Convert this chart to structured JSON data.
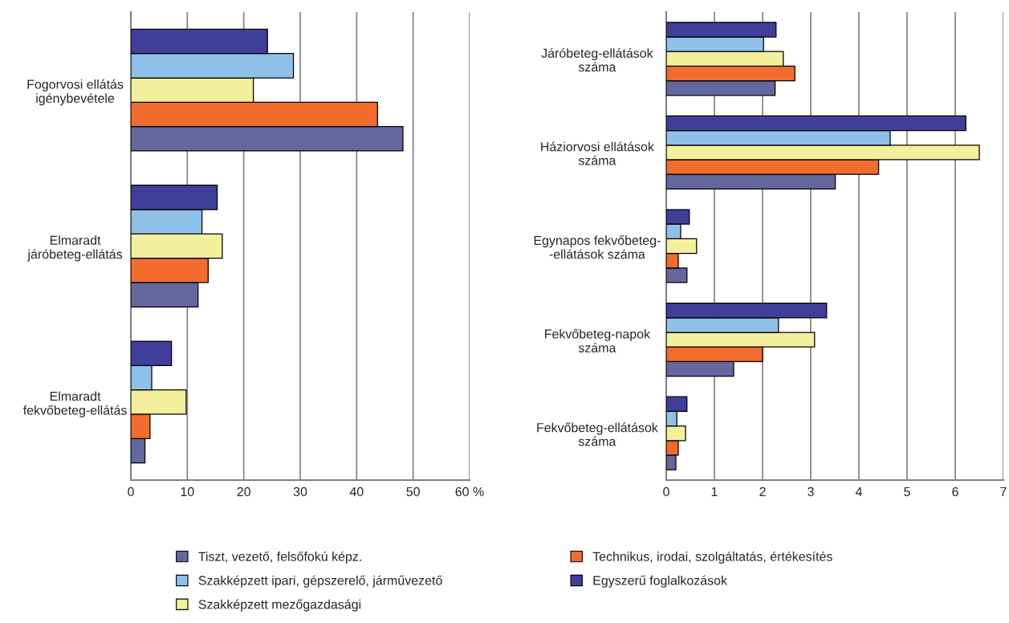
{
  "chart_data": [
    {
      "type": "bar",
      "orientation": "horizontal",
      "categories": [
        "Fogorvosi ellátás\nigénybevétele",
        "Elmaradt\njáróbeteg-ellátás",
        "Elmaradt\nfekvőbeteg-ellátás"
      ],
      "xlim": [
        0,
        60
      ],
      "xticks": [
        0,
        10,
        20,
        30,
        40,
        50,
        {
          "value": 60,
          "label": "60 %"
        }
      ],
      "grid": "x",
      "legend": "bottom",
      "series": [
        {
          "name": "Tiszt, vezető, felsőfokú képz.",
          "color": "#65679f",
          "values": [
            48.2,
            11.9,
            2.5
          ]
        },
        {
          "name": "Technikus, irodai, szolgáltatás, értékesítés",
          "color": "#f26c2d",
          "values": [
            43.7,
            13.7,
            3.4
          ]
        },
        {
          "name": "Szakképzett mezőgazdasági",
          "color": "#f2f09a",
          "values": [
            21.7,
            16.2,
            9.8
          ]
        },
        {
          "name": "Szakképzett ipari, gépszerelő, járművezető",
          "color": "#8fc0e8",
          "values": [
            28.8,
            12.6,
            3.7
          ]
        },
        {
          "name": "Egyszerű foglalkozások",
          "color": "#3f3f9a",
          "values": [
            24.2,
            15.3,
            7.2
          ]
        }
      ]
    },
    {
      "type": "bar",
      "orientation": "horizontal",
      "categories": [
        "Járóbeteg-ellátások\nszáma",
        "Háziorvosi ellátások\nszáma",
        "Egynapos fekvőbeteg-\n-ellátások száma",
        "Fekvőbeteg-napok\nszáma",
        "Fekvőbeteg-ellátások\nszáma"
      ],
      "xlim": [
        0,
        7
      ],
      "xticks": [
        0,
        1,
        2,
        3,
        4,
        5,
        6,
        7
      ],
      "grid": "x",
      "legend": "bottom",
      "series": [
        {
          "name": "Tiszt, vezető, felsőfokú képz.",
          "color": "#65679f",
          "values": [
            2.26,
            3.51,
            0.43,
            1.4,
            0.2
          ]
        },
        {
          "name": "Technikus, irodai, szolgáltatás, értékesítés",
          "color": "#f26c2d",
          "values": [
            2.67,
            4.41,
            0.25,
            2.0,
            0.25
          ]
        },
        {
          "name": "Szakképzett mezőgazdasági",
          "color": "#f2f09a",
          "values": [
            2.43,
            6.5,
            0.63,
            3.08,
            0.4
          ]
        },
        {
          "name": "Szakképzett ipari, gépszerelő, járművezető",
          "color": "#8fc0e8",
          "values": [
            2.02,
            4.65,
            0.3,
            2.33,
            0.22
          ]
        },
        {
          "name": "Egyszerű foglalkozások",
          "color": "#3f3f9a",
          "values": [
            2.28,
            6.22,
            0.48,
            3.33,
            0.43
          ]
        }
      ]
    }
  ]
}
